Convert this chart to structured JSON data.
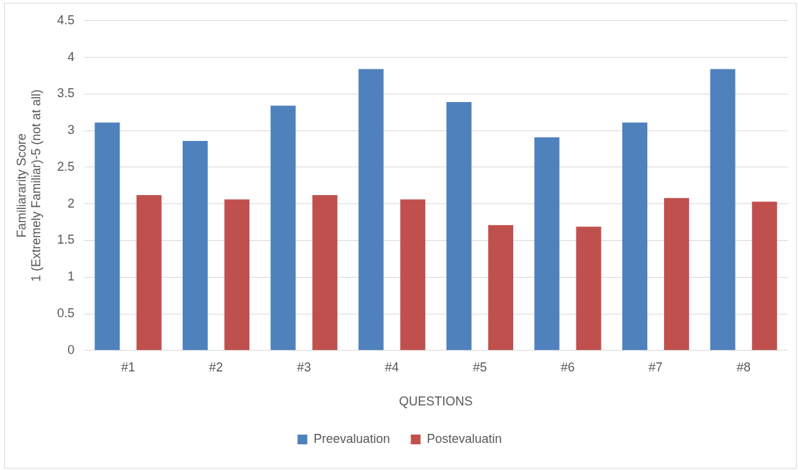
{
  "chart_data": {
    "type": "bar",
    "xlabel": "QUESTIONS",
    "ylabel": "Familiararity Score\n1 (Extremely Familiar)-5 (not at all)",
    "categories": [
      "#1",
      "#2",
      "#3",
      "#4",
      "#5",
      "#6",
      "#7",
      "#8"
    ],
    "series": [
      {
        "name": "Preevaluation",
        "color": "#4f81bd",
        "values": [
          3.11,
          2.86,
          3.34,
          3.84,
          3.39,
          2.91,
          3.11,
          3.84
        ]
      },
      {
        "name": "Postevaluatin",
        "color": "#c0504d",
        "values": [
          2.12,
          2.06,
          2.12,
          2.06,
          1.71,
          1.69,
          2.08,
          2.03
        ]
      }
    ],
    "ylim": [
      0,
      4.5
    ],
    "yticks": [
      0,
      0.5,
      1,
      1.5,
      2,
      2.5,
      3,
      3.5,
      4,
      4.5
    ],
    "grid": "y",
    "legend": "bottom"
  }
}
